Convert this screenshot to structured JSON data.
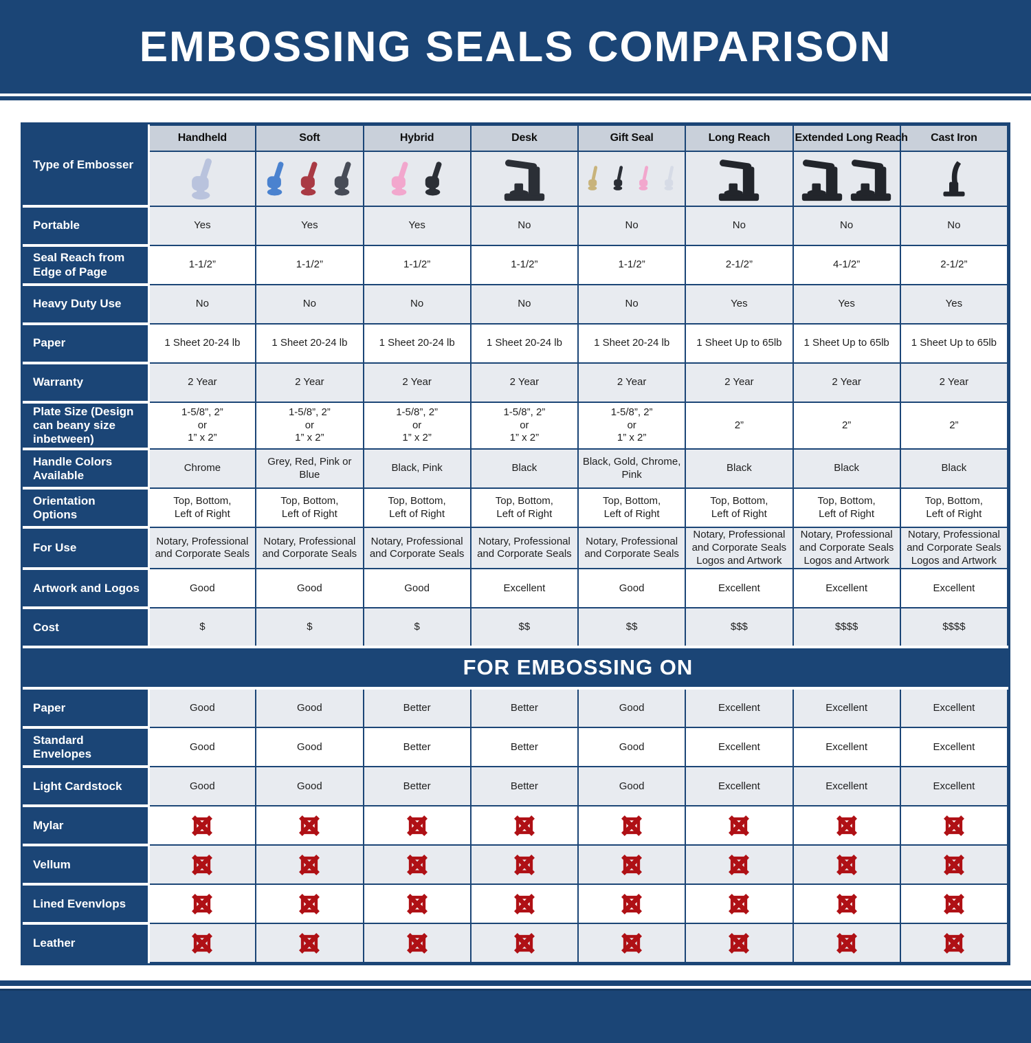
{
  "title": "EMBOSSING SEALS COMPARISON",
  "section_banner": "FOR EMBOSSING ON",
  "colors": {
    "navy": "#1B4576",
    "header_cell_bg": "#C9D0DA",
    "photo_cell_bg": "#E6E9EE",
    "row_light_bg": "#E8EBF0",
    "row_white_bg": "#FFFFFF",
    "x_mark_red": "#AF1015",
    "label_text": "#FFFFFF",
    "cell_text": "#1E1E1E"
  },
  "icons": {
    "x_mark": "x-mark-icon",
    "embosser_photos": [
      "handheld-embosser-photo",
      "soft-embosser-photo",
      "hybrid-embosser-photo",
      "desk-embosser-photo",
      "gift-seal-embosser-photo",
      "long-reach-embosser-photo",
      "extended-long-reach-embosser-photo",
      "cast-iron-embosser-photo"
    ]
  },
  "table": {
    "corner_label": "Type of Embosser",
    "columns": [
      {
        "label": "Handheld",
        "photo": {
          "style": "handheld",
          "colors": [
            "#b9c3dd"
          ]
        }
      },
      {
        "label": "Soft",
        "photo": {
          "style": "handheld",
          "colors": [
            "#4a82cf",
            "#a93a44",
            "#474c57"
          ]
        }
      },
      {
        "label": "Hybrid",
        "photo": {
          "style": "handheld",
          "colors": [
            "#f2a7cd",
            "#2b2f36"
          ]
        }
      },
      {
        "label": "Desk",
        "photo": {
          "style": "desk",
          "colors": [
            "#2b2f36"
          ]
        }
      },
      {
        "label": "Gift Seal",
        "photo": {
          "style": "gift",
          "colors": [
            "#c8b37b",
            "#2b2f36",
            "#f2a7cd",
            "#d6dbe6"
          ]
        }
      },
      {
        "label": "Long Reach",
        "photo": {
          "style": "desk",
          "colors": [
            "#22252b"
          ]
        }
      },
      {
        "label": "Extended Long Reach",
        "photo": {
          "style": "desk",
          "colors": [
            "#22252b",
            "#22252b"
          ]
        }
      },
      {
        "label": "Cast Iron",
        "photo": {
          "style": "cast",
          "colors": [
            "#22252b"
          ]
        }
      }
    ],
    "rows": [
      {
        "label": "Portable",
        "shade": "light",
        "values": [
          "Yes",
          "Yes",
          "Yes",
          "No",
          "No",
          "No",
          "No",
          "No"
        ]
      },
      {
        "label": "Seal Reach from Edge of Page",
        "shade": "white",
        "values": [
          "1-1/2”",
          "1-1/2”",
          "1-1/2”",
          "1-1/2”",
          "1-1/2”",
          "2-1/2”",
          "4-1/2”",
          "2-1/2”"
        ]
      },
      {
        "label": "Heavy Duty Use",
        "shade": "light",
        "values": [
          "No",
          "No",
          "No",
          "No",
          "No",
          "Yes",
          "Yes",
          "Yes"
        ]
      },
      {
        "label": "Paper",
        "shade": "white",
        "values": [
          "1 Sheet 20-24 lb",
          "1 Sheet 20-24 lb",
          "1 Sheet 20-24 lb",
          "1 Sheet 20-24 lb",
          "1 Sheet 20-24 lb",
          "1 Sheet Up to 65lb",
          "1 Sheet Up to 65lb",
          "1 Sheet Up to 65lb"
        ]
      },
      {
        "label": "Warranty",
        "shade": "light",
        "values": [
          "2 Year",
          "2 Year",
          "2 Year",
          "2 Year",
          "2 Year",
          "2 Year",
          "2 Year",
          "2 Year"
        ]
      },
      {
        "label": "Plate Size (Design can beany size inbetween)",
        "shade": "white",
        "values": [
          "1-5/8”, 2”\nor\n1” x 2”",
          "1-5/8”, 2”\nor\n1” x 2”",
          "1-5/8”, 2”\nor\n1” x 2”",
          "1-5/8”, 2”\nor\n1” x 2”",
          "1-5/8”, 2”\nor\n1” x 2”",
          "2”",
          "2”",
          "2”"
        ]
      },
      {
        "label": "Handle Colors Available",
        "shade": "light",
        "values": [
          "Chrome",
          "Grey, Red, Pink or Blue",
          "Black, Pink",
          "Black",
          "Black, Gold, Chrome, Pink",
          "Black",
          "Black",
          "Black"
        ]
      },
      {
        "label": "Orientation Options",
        "shade": "white",
        "values": [
          "Top, Bottom,\nLeft of Right",
          "Top, Bottom,\nLeft of Right",
          "Top, Bottom,\nLeft of Right",
          "Top, Bottom,\nLeft of Right",
          "Top, Bottom,\nLeft of Right",
          "Top, Bottom,\nLeft of Right",
          "Top, Bottom,\nLeft of Right",
          "Top, Bottom,\nLeft of Right"
        ]
      },
      {
        "label": "For Use",
        "shade": "light",
        "values": [
          "Notary, Professional\nand Corporate Seals",
          "Notary, Professional\nand Corporate Seals",
          "Notary, Professional\nand Corporate Seals",
          "Notary, Professional\nand Corporate Seals",
          "Notary, Professional\nand Corporate Seals",
          "Notary, Professional\nand Corporate Seals\nLogos and Artwork",
          "Notary, Professional\nand Corporate Seals\nLogos and Artwork",
          "Notary, Professional\nand Corporate Seals\nLogos and Artwork"
        ]
      },
      {
        "label": "Artwork and Logos",
        "shade": "white",
        "values": [
          "Good",
          "Good",
          "Good",
          "Excellent",
          "Good",
          "Excellent",
          "Excellent",
          "Excellent"
        ]
      },
      {
        "label": "Cost",
        "shade": "light",
        "values": [
          "$",
          "$",
          "$",
          "$$",
          "$$",
          "$$$",
          "$$$$",
          "$$$$"
        ]
      }
    ],
    "embossing_rows": [
      {
        "label": "Paper",
        "shade": "light",
        "values": [
          "Good",
          "Good",
          "Better",
          "Better",
          "Good",
          "Excellent",
          "Excellent",
          "Excellent"
        ]
      },
      {
        "label": "Standard Envelopes",
        "shade": "white",
        "values": [
          "Good",
          "Good",
          "Better",
          "Better",
          "Good",
          "Excellent",
          "Excellent",
          "Excellent"
        ]
      },
      {
        "label": "Light Cardstock",
        "shade": "light",
        "values": [
          "Good",
          "Good",
          "Better",
          "Better",
          "Good",
          "Excellent",
          "Excellent",
          "Excellent"
        ]
      },
      {
        "label": "Mylar",
        "shade": "white",
        "type": "x"
      },
      {
        "label": "Vellum",
        "shade": "light",
        "type": "x"
      },
      {
        "label": "Lined Evenvlops",
        "shade": "white",
        "type": "x"
      },
      {
        "label": "Leather",
        "shade": "light",
        "type": "x"
      }
    ]
  }
}
